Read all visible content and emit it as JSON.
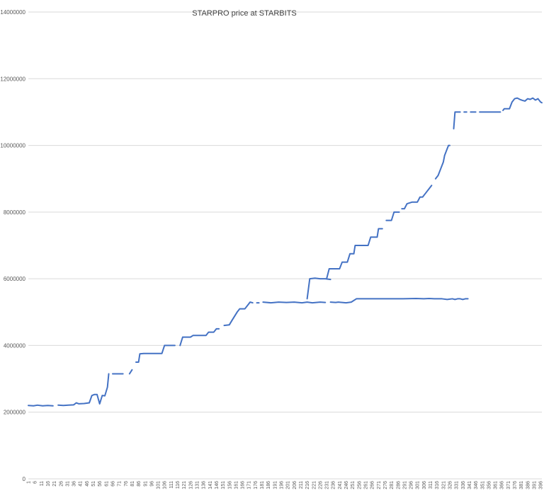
{
  "chart_data": {
    "type": "line",
    "title": "STARPRO price at STARBITS",
    "xlabel": "",
    "ylabel": "",
    "ylim": [
      0,
      14000000
    ],
    "yticks": [
      "0",
      "2000000",
      "4000000",
      "6000000",
      "8000000",
      "10000000",
      "12000000",
      "14000000"
    ],
    "xlim": [
      1,
      397
    ],
    "xtick_labels": [
      "1",
      "6",
      "11",
      "16",
      "21",
      "26",
      "31",
      "36",
      "41",
      "46",
      "51",
      "56",
      "61",
      "66",
      "71",
      "76",
      "81",
      "86",
      "91",
      "96",
      "101",
      "106",
      "111",
      "116",
      "121",
      "126",
      "131",
      "136",
      "141",
      "146",
      "151",
      "156",
      "161",
      "166",
      "171",
      "176",
      "181",
      "186",
      "191",
      "196",
      "201",
      "206",
      "211",
      "216",
      "221",
      "226",
      "231",
      "236",
      "241",
      "246",
      "251",
      "256",
      "261",
      "266",
      "271",
      "276",
      "281",
      "286",
      "291",
      "296",
      "301",
      "306",
      "311",
      "316",
      "321",
      "326",
      "331",
      "336",
      "341",
      "346",
      "351",
      "356",
      "361",
      "366",
      "371",
      "376",
      "381",
      "386",
      "391",
      "396"
    ],
    "grid": true,
    "legend": "none",
    "colors": {
      "line": "#4472c4",
      "grid": "#d9d9d9"
    },
    "series": [
      {
        "segments": [
          [
            [
              1,
              2200000
            ],
            [
              5,
              2190000
            ],
            [
              8,
              2210000
            ],
            [
              12,
              2190000
            ],
            [
              16,
              2200000
            ],
            [
              20,
              2190000
            ]
          ],
          [
            [
              24,
              2210000
            ],
            [
              28,
              2200000
            ],
            [
              32,
              2210000
            ],
            [
              36,
              2220000
            ],
            [
              38,
              2280000
            ],
            [
              40,
              2250000
            ],
            [
              44,
              2260000
            ],
            [
              48,
              2280000
            ],
            [
              50,
              2500000
            ],
            [
              52,
              2530000
            ],
            [
              54,
              2530000
            ],
            [
              56,
              2250000
            ],
            [
              58,
              2500000
            ],
            [
              60,
              2490000
            ],
            [
              62,
              2750000
            ],
            [
              63,
              3150000
            ]
          ],
          [
            [
              66,
              3150000
            ],
            [
              70,
              3150000
            ],
            [
              74,
              3150000
            ]
          ],
          [
            [
              79,
              3150000
            ],
            [
              81,
              3270000
            ]
          ],
          [
            [
              84,
              3500000
            ],
            [
              86,
              3500000
            ],
            [
              87,
              3750000
            ],
            [
              90,
              3760000
            ],
            [
              96,
              3760000
            ],
            [
              104,
              3760000
            ],
            [
              106,
              4000000
            ],
            [
              114,
              4000000
            ]
          ],
          [
            [
              118,
              4000000
            ],
            [
              120,
              4250000
            ],
            [
              126,
              4250000
            ],
            [
              128,
              4300000
            ],
            [
              134,
              4300000
            ],
            [
              138,
              4300000
            ],
            [
              140,
              4400000
            ],
            [
              144,
              4400000
            ],
            [
              146,
              4500000
            ],
            [
              148,
              4500000
            ]
          ],
          [
            [
              152,
              4600000
            ],
            [
              156,
              4620000
            ],
            [
              158,
              4750000
            ],
            [
              162,
              5000000
            ],
            [
              164,
              5100000
            ],
            [
              168,
              5100000
            ],
            [
              170,
              5200000
            ],
            [
              172,
              5300000
            ],
            [
              174,
              5280000
            ]
          ],
          [
            [
              178,
              5280000
            ]
          ],
          [
            [
              182,
              5300000
            ],
            [
              188,
              5280000
            ],
            [
              194,
              5300000
            ],
            [
              200,
              5290000
            ],
            [
              206,
              5300000
            ],
            [
              212,
              5280000
            ],
            [
              216,
              5300000
            ],
            [
              220,
              5280000
            ],
            [
              226,
              5300000
            ],
            [
              230,
              5290000
            ]
          ],
          [
            [
              234,
              5300000
            ],
            [
              238,
              5290000
            ],
            [
              240,
              5300000
            ],
            [
              246,
              5280000
            ],
            [
              250,
              5300000
            ],
            [
              254,
              5400000
            ],
            [
              260,
              5400000
            ],
            [
              270,
              5400000
            ],
            [
              280,
              5400000
            ],
            [
              290,
              5400000
            ],
            [
              300,
              5410000
            ],
            [
              306,
              5400000
            ],
            [
              310,
              5410000
            ],
            [
              314,
              5400000
            ],
            [
              318,
              5400000
            ],
            [
              320,
              5400000
            ],
            [
              324,
              5380000
            ],
            [
              328,
              5400000
            ],
            [
              330,
              5380000
            ],
            [
              332,
              5400000
            ],
            [
              334,
              5400000
            ],
            [
              336,
              5380000
            ],
            [
              338,
              5400000
            ],
            [
              340,
              5400000
            ]
          ],
          [
            [
              216,
              5400000
            ],
            [
              218,
              6000000
            ],
            [
              222,
              6020000
            ],
            [
              226,
              6000000
            ],
            [
              230,
              6000000
            ],
            [
              234,
              5980000
            ]
          ],
          [
            [
              231,
              6000000
            ],
            [
              233,
              6300000
            ],
            [
              238,
              6300000
            ],
            [
              241,
              6300000
            ],
            [
              243,
              6500000
            ],
            [
              247,
              6500000
            ],
            [
              249,
              6750000
            ],
            [
              252,
              6750000
            ],
            [
              253,
              7000000
            ],
            [
              258,
              7000000
            ],
            [
              263,
              7000000
            ],
            [
              265,
              7250000
            ],
            [
              270,
              7250000
            ],
            [
              271,
              7500000
            ],
            [
              274,
              7500000
            ]
          ],
          [
            [
              277,
              7750000
            ],
            [
              281,
              7750000
            ],
            [
              283,
              8000000
            ],
            [
              287,
              8000000
            ]
          ],
          [
            [
              289,
              8100000
            ],
            [
              291,
              8100000
            ],
            [
              293,
              8250000
            ],
            [
              297,
              8300000
            ],
            [
              301,
              8300000
            ],
            [
              303,
              8450000
            ],
            [
              305,
              8450000
            ],
            [
              307,
              8550000
            ],
            [
              308,
              8600000
            ],
            [
              310,
              8700000
            ],
            [
              312,
              8800000
            ]
          ],
          [
            [
              315,
              9000000
            ],
            [
              317,
              9100000
            ],
            [
              319,
              9300000
            ],
            [
              321,
              9500000
            ],
            [
              322,
              9700000
            ],
            [
              324,
              9900000
            ],
            [
              325,
              10000000
            ],
            [
              326,
              10000000
            ]
          ],
          [
            [
              329,
              10500000
            ],
            [
              330,
              11000000
            ],
            [
              334,
              11000000
            ]
          ],
          [
            [
              337,
              11000000
            ],
            [
              339,
              11000000
            ]
          ],
          [
            [
              342,
              11000000
            ],
            [
              346,
              11000000
            ]
          ],
          [
            [
              349,
              11000000
            ],
            [
              353,
              11000000
            ],
            [
              357,
              11000000
            ],
            [
              361,
              11000000
            ],
            [
              365,
              11000000
            ]
          ],
          [
            [
              367,
              11050000
            ],
            [
              368,
              11100000
            ],
            [
              372,
              11100000
            ],
            [
              374,
              11300000
            ],
            [
              376,
              11400000
            ],
            [
              378,
              11420000
            ],
            [
              380,
              11380000
            ],
            [
              382,
              11350000
            ],
            [
              384,
              11330000
            ],
            [
              386,
              11400000
            ],
            [
              388,
              11380000
            ],
            [
              390,
              11420000
            ],
            [
              392,
              11360000
            ],
            [
              394,
              11400000
            ],
            [
              396,
              11300000
            ],
            [
              397,
              11280000
            ]
          ]
        ]
      }
    ]
  }
}
